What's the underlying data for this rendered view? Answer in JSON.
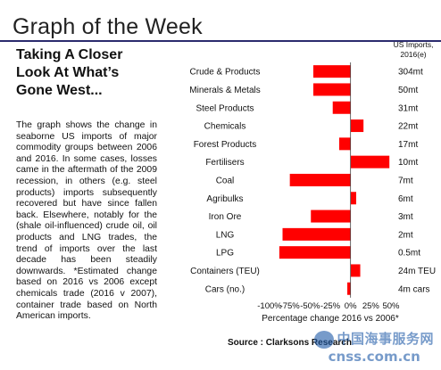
{
  "header": {
    "title": "Graph of the Week"
  },
  "article": {
    "headline": "Taking A Closer Look At What’s Gone West...",
    "body": "The graph shows the change in seaborne US imports of major commodity groups between 2006 and 2016. In some cases, losses came in the aftermath of the 2009 recession, in others (e.g. steel products) imports subsequently recovered but have since fallen back. Elsewhere, notably for the (shale oil-influenced) crude oil, oil products and LNG trades, the trend of imports over the last decade has been steadily downwards. *Estimated change based on 2016 vs 2006 except chemicals trade (2016 v 2007), container trade based on North American imports."
  },
  "column_header": "US Imports, 2016(e)",
  "source": "Source : Clarksons Research",
  "watermark": {
    "cn": "中国海事服务网",
    "url": "cnss.com.cn"
  },
  "colors": {
    "bar": "#ff0000",
    "rule": "#2b2b6e",
    "watermark": "#1e5aa8"
  },
  "chart_data": {
    "type": "bar",
    "orientation": "horizontal",
    "categories": [
      "Crude & Products",
      "Minerals & Metals",
      "Steel Products",
      "Chemicals",
      "Forest Products",
      "Fertilisers",
      "Coal",
      "Agribulks",
      "Iron Ore",
      "LNG",
      "LPG",
      "Containers (TEU)",
      "Cars (no.)"
    ],
    "values": [
      -46,
      -46,
      -22,
      16,
      -14,
      48,
      -75,
      7,
      -49,
      -84,
      -88,
      12,
      -4
    ],
    "import_volumes": [
      "304mt",
      "50mt",
      "31mt",
      "22mt",
      "17mt",
      "10mt",
      "7mt",
      "6mt",
      "3mt",
      "2mt",
      "0.5mt",
      "24m TEU",
      "4m cars"
    ],
    "xlabel": "Percentage change 2016 vs 2006*",
    "xlim": [
      -100,
      50
    ],
    "xticks": [
      -100,
      -75,
      -50,
      -25,
      0,
      25,
      50
    ],
    "xtick_labels": [
      "-100%",
      "-75%",
      "-50%",
      "-25%",
      "0%",
      "25%",
      "50%"
    ],
    "grid": false
  }
}
